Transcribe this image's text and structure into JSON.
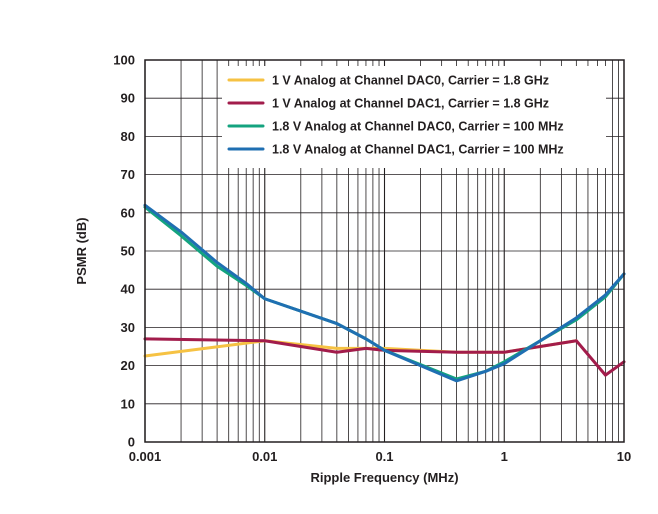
{
  "chart_data": {
    "type": "line",
    "title": "",
    "xlabel": "Ripple Frequency (MHz)",
    "ylabel": "PSMR (dB)",
    "xscale": "log",
    "xlim": [
      0.001,
      10
    ],
    "ylim": [
      0,
      100
    ],
    "x_ticks": [
      0.001,
      0.01,
      0.1,
      1,
      10
    ],
    "x_tick_labels": [
      "0.001",
      "0.01",
      "0.1",
      "1",
      "10"
    ],
    "y_ticks": [
      0,
      10,
      20,
      30,
      40,
      50,
      60,
      70,
      80,
      90,
      100
    ],
    "y_tick_labels": [
      "0",
      "10",
      "20",
      "30",
      "40",
      "50",
      "60",
      "70",
      "80",
      "90",
      "100"
    ],
    "grid": true,
    "legend_position": "top-right",
    "series": [
      {
        "name": "1 V Analog at Channel DAC0, Carrier = 1.8 GHz",
        "color": "#f6c243",
        "x": [
          0.001,
          0.01,
          0.04,
          0.07,
          0.1,
          0.4,
          1,
          4
        ],
        "y": [
          22.5,
          26.5,
          24.5,
          24.5,
          24.5,
          23.5,
          23.5,
          26.5
        ]
      },
      {
        "name": "1 V Analog at Channel DAC1, Carrier = 1.8 GHz",
        "color": "#a21c4b",
        "x": [
          0.001,
          0.01,
          0.04,
          0.07,
          0.1,
          0.4,
          1,
          4,
          7,
          10
        ],
        "y": [
          27,
          26.5,
          23.5,
          24.5,
          24,
          23.5,
          23.5,
          26.5,
          17.5,
          21
        ]
      },
      {
        "name": "1.8 V Analog at Channel DAC0, Carrier = 100 MHz",
        "color": "#14a37f",
        "x": [
          0.001,
          0.002,
          0.004,
          0.007,
          0.01,
          0.04,
          0.07,
          0.1,
          0.4,
          0.7,
          1,
          4,
          7,
          10
        ],
        "y": [
          61.5,
          54,
          46,
          41,
          37.5,
          31,
          27,
          24,
          16.5,
          18.5,
          21,
          32,
          38,
          44
        ]
      },
      {
        "name": "1.8 V Analog at Channel DAC1, Carrier = 100 MHz",
        "color": "#1f6fb2",
        "x": [
          0.001,
          0.002,
          0.004,
          0.007,
          0.01,
          0.04,
          0.07,
          0.1,
          0.4,
          0.7,
          1,
          4,
          7,
          10
        ],
        "y": [
          62,
          55,
          47,
          41.5,
          37.5,
          31,
          27,
          24,
          16,
          18.5,
          20.5,
          32.5,
          38.5,
          44
        ]
      }
    ]
  }
}
